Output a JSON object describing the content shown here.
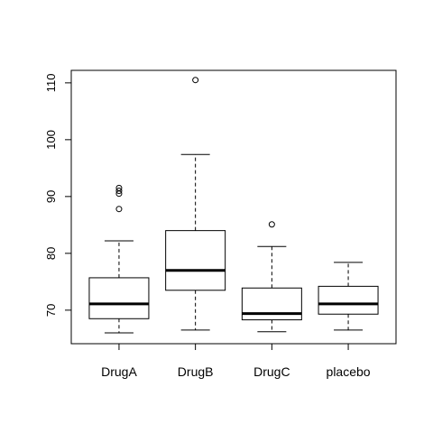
{
  "chart_data": {
    "type": "box",
    "categories": [
      "DrugA",
      "DrugB",
      "DrugC",
      "placebo"
    ],
    "boxes": [
      {
        "name": "DrugA",
        "lower_whisker": 66.0,
        "q1": 68.5,
        "median": 71.1,
        "q3": 75.7,
        "upper_whisker": 82.2,
        "outliers": [
          87.8,
          90.5,
          91.0,
          91.5
        ]
      },
      {
        "name": "DrugB",
        "lower_whisker": 66.5,
        "q1": 73.5,
        "median": 77.0,
        "q3": 84.0,
        "upper_whisker": 97.4,
        "outliers": [
          110.5
        ]
      },
      {
        "name": "DrugC",
        "lower_whisker": 66.2,
        "q1": 68.3,
        "median": 69.4,
        "q3": 73.9,
        "upper_whisker": 81.2,
        "outliers": [
          85.1
        ]
      },
      {
        "name": "placebo",
        "lower_whisker": 66.5,
        "q1": 69.3,
        "median": 71.1,
        "q3": 74.2,
        "upper_whisker": 78.4,
        "outliers": []
      }
    ],
    "yticks": [
      70,
      80,
      90,
      100,
      110
    ],
    "ylim": [
      64.1,
      112.2
    ],
    "title": "",
    "xlabel": "",
    "ylabel": "",
    "grid": false
  }
}
